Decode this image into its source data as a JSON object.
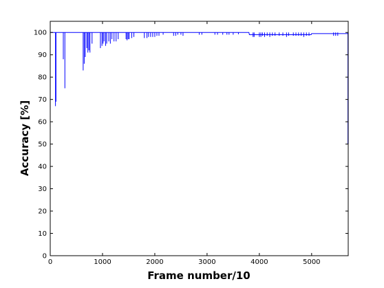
{
  "chart_data": {
    "type": "line",
    "xlabel": "Frame number/10",
    "ylabel": "Accuracy [%]",
    "xlim": [
      0,
      5700
    ],
    "ylim": [
      0,
      105
    ],
    "xticks": [
      0,
      1000,
      2000,
      3000,
      4000,
      5000
    ],
    "yticks": [
      0,
      10,
      20,
      30,
      40,
      50,
      60,
      70,
      80,
      90,
      100
    ],
    "grid": false,
    "series": [
      {
        "color": "#0000ff",
        "baseline": [
          [
            0,
            100
          ],
          [
            3800,
            100
          ],
          [
            3810,
            99
          ],
          [
            4990,
            99
          ],
          [
            5000,
            99.5
          ],
          [
            5690,
            99.5
          ],
          [
            5700,
            100
          ]
        ],
        "dips": [
          [
            100,
            67
          ],
          [
            110,
            69
          ],
          [
            250,
            88
          ],
          [
            280,
            75
          ],
          [
            630,
            83
          ],
          [
            650,
            86
          ],
          [
            670,
            89
          ],
          [
            700,
            93
          ],
          [
            720,
            91
          ],
          [
            740,
            92
          ],
          [
            760,
            91
          ],
          [
            800,
            95
          ],
          [
            960,
            93
          ],
          [
            990,
            94
          ],
          [
            1010,
            95
          ],
          [
            1030,
            96
          ],
          [
            1060,
            94
          ],
          [
            1080,
            95
          ],
          [
            1120,
            96
          ],
          [
            1150,
            95
          ],
          [
            1180,
            97
          ],
          [
            1220,
            96
          ],
          [
            1260,
            96
          ],
          [
            1300,
            97
          ],
          [
            1450,
            97
          ],
          [
            1470,
            96.5
          ],
          [
            1490,
            97
          ],
          [
            1510,
            97
          ],
          [
            1560,
            97.5
          ],
          [
            1600,
            98
          ],
          [
            1800,
            97.5
          ],
          [
            1850,
            97.5
          ],
          [
            1880,
            98
          ],
          [
            1920,
            98
          ],
          [
            1960,
            98
          ],
          [
            2000,
            98
          ],
          [
            2040,
            98.5
          ],
          [
            2080,
            98.5
          ],
          [
            2160,
            99
          ],
          [
            2360,
            98.5
          ],
          [
            2400,
            98.5
          ],
          [
            2440,
            99
          ],
          [
            2500,
            99
          ],
          [
            2540,
            98.5
          ],
          [
            2850,
            99
          ],
          [
            2900,
            99
          ],
          [
            3150,
            99
          ],
          [
            3200,
            99
          ],
          [
            3300,
            99
          ],
          [
            3380,
            99
          ],
          [
            3420,
            99
          ],
          [
            3500,
            99
          ],
          [
            3600,
            99.2
          ],
          [
            3880,
            98
          ],
          [
            3900,
            98
          ],
          [
            4000,
            98
          ],
          [
            4030,
            98
          ],
          [
            4060,
            98.5
          ],
          [
            4100,
            98
          ],
          [
            4150,
            98.5
          ],
          [
            4200,
            98
          ],
          [
            4250,
            98.5
          ],
          [
            4300,
            98.5
          ],
          [
            4380,
            98.5
          ],
          [
            4450,
            98.5
          ],
          [
            4520,
            98
          ],
          [
            4560,
            98.5
          ],
          [
            4650,
            98.5
          ],
          [
            4700,
            98.5
          ],
          [
            4750,
            98.5
          ],
          [
            4800,
            98.5
          ],
          [
            4850,
            98
          ],
          [
            4900,
            98.5
          ],
          [
            4950,
            98.5
          ],
          [
            5420,
            98.5
          ],
          [
            5460,
            98.5
          ],
          [
            5500,
            98.5
          ],
          [
            5695,
            50
          ]
        ]
      }
    ]
  }
}
